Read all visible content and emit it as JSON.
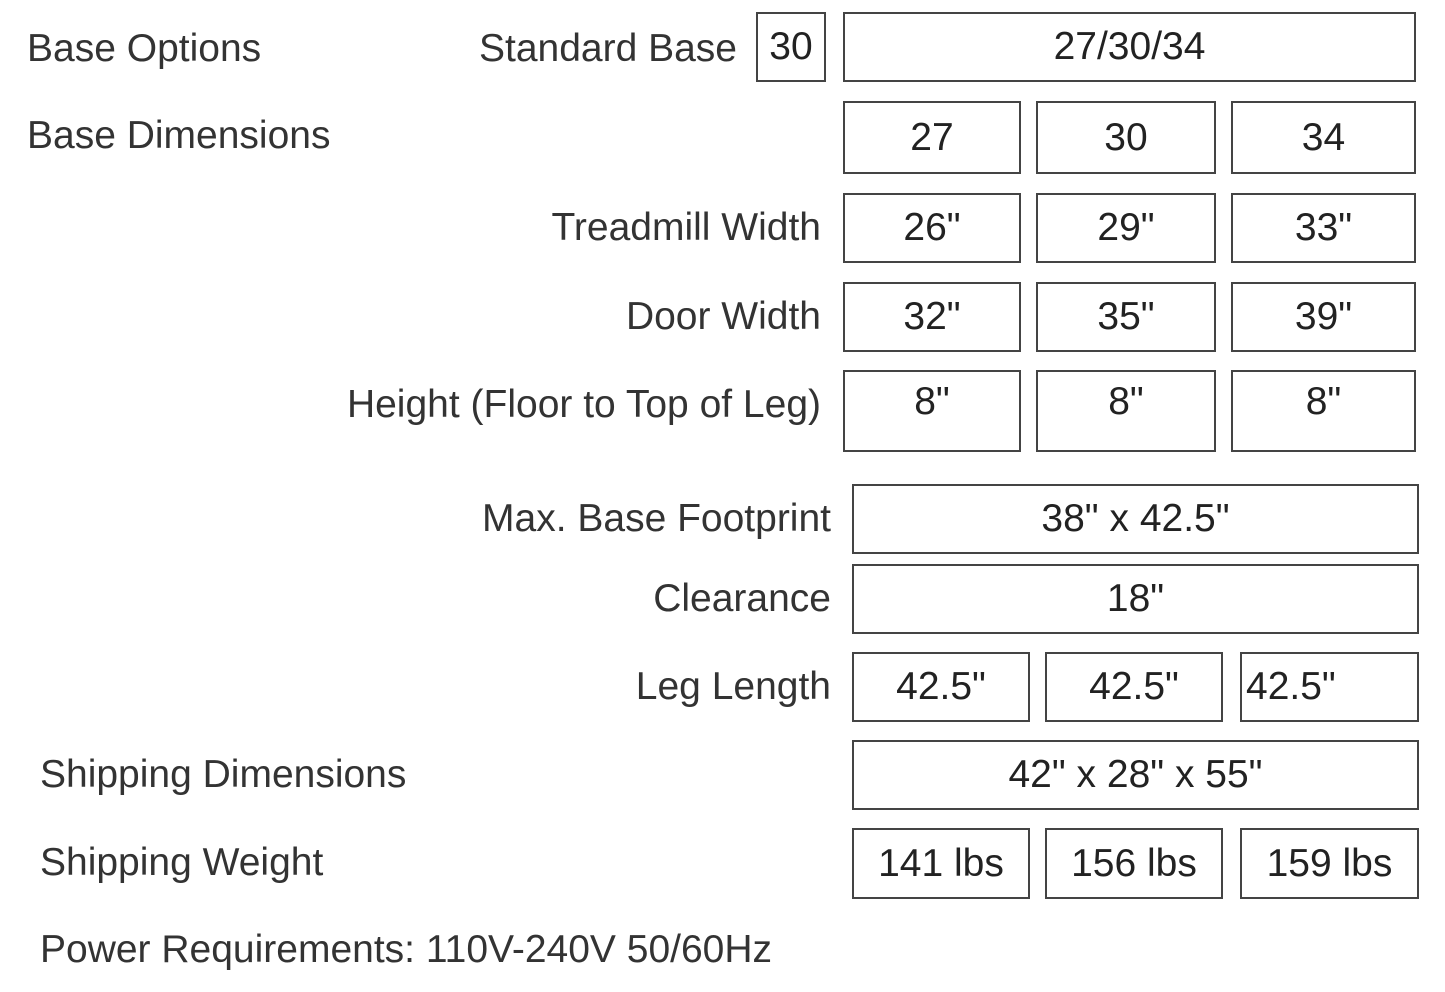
{
  "base_options": {
    "label": "Base Options",
    "standard_label": "Standard Base",
    "standard_value": "30",
    "options": "27/30/34"
  },
  "base_dimensions": {
    "label": "Base Dimensions",
    "sizes": [
      "27",
      "30",
      "34"
    ]
  },
  "treadmill_width": {
    "label": "Treadmill Width",
    "values": [
      "26\"",
      "29\"",
      "33\""
    ]
  },
  "door_width": {
    "label": "Door Width",
    "values": [
      "32\"",
      "35\"",
      "39\""
    ]
  },
  "height": {
    "label": "Height (Floor to Top of Leg)",
    "values": [
      "8\"",
      "8\"",
      "8\""
    ]
  },
  "max_footprint": {
    "label": "Max. Base Footprint",
    "value": "38\" x 42.5\""
  },
  "clearance": {
    "label": "Clearance",
    "value": "18\""
  },
  "leg_length": {
    "label": "Leg Length",
    "values": [
      "42.5\"",
      "42.5\"",
      "42.5\""
    ]
  },
  "shipping_dimensions": {
    "label": "Shipping Dimensions",
    "value": "42\" x 28\" x 55\""
  },
  "shipping_weight": {
    "label": "Shipping Weight",
    "values": [
      "141 lbs",
      "156 lbs",
      "159 lbs"
    ]
  },
  "power": {
    "text": "Power Requirements: 110V-240V 50/60Hz"
  }
}
